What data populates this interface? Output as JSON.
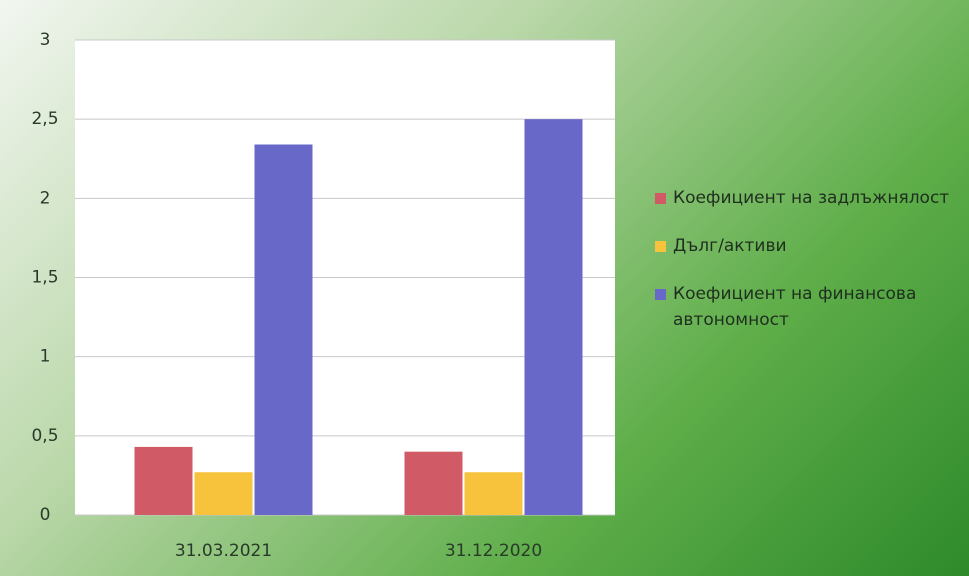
{
  "chart_data": {
    "type": "bar",
    "categories": [
      "31.03.2021",
      "31.12.2020"
    ],
    "series": [
      {
        "name": "Коефициент на задлъжнялост",
        "color": "#d05a66",
        "values": [
          0.43,
          0.4
        ]
      },
      {
        "name": "Дълг/активи",
        "color": "#f7c23c",
        "values": [
          0.27,
          0.27
        ]
      },
      {
        "name": "Коефициент на финансова автономност",
        "color": "#6868c8",
        "values": [
          2.34,
          2.5
        ]
      }
    ],
    "ylim": [
      0,
      3
    ],
    "yticks": [
      0,
      {
        "value": 0.5,
        "label": "0,5"
      },
      1,
      {
        "value": 1.5,
        "label": "1,5"
      },
      2,
      {
        "value": 2.5,
        "label": "2,5"
      },
      3
    ],
    "grid": true,
    "legend": "right"
  }
}
